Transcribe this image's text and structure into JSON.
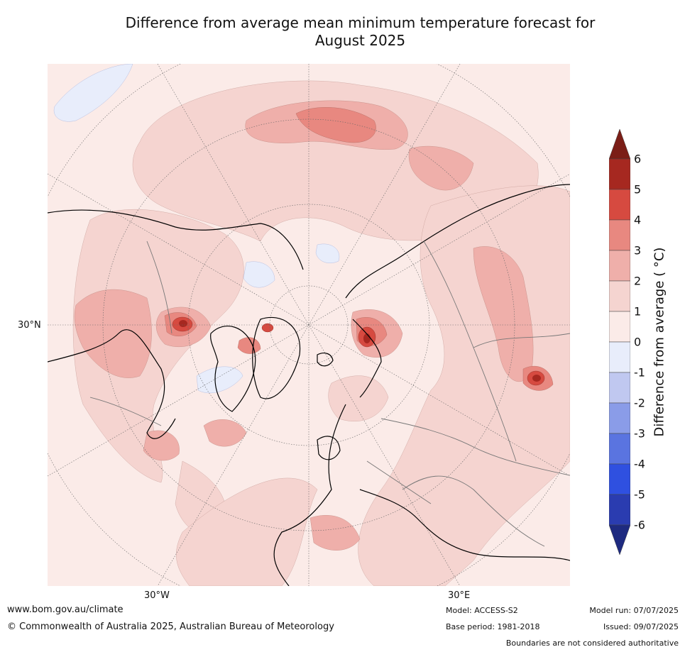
{
  "title_line1": "Difference from average mean minimum temperature forecast for",
  "title_line2": "August 2025",
  "map": {
    "projection": "polar",
    "lat_label": "30°N",
    "lon_labels": {
      "west": "30°W",
      "east": "30°E"
    }
  },
  "colorbar": {
    "label": "Difference from average ( °C)",
    "ticks": [
      "6",
      "5",
      "4",
      "3",
      "2",
      "1",
      "0",
      "-1",
      "-2",
      "-3",
      "-4",
      "-5",
      "-6"
    ],
    "colors": {
      "over": "#7b1e17",
      "5_6": "#a62820",
      "4_5": "#d64a40",
      "3_4": "#e88880",
      "2_3": "#efafaa",
      "1_2": "#f5d4d0",
      "0_1": "#fbebe8",
      "m1_0": "#e8edfb",
      "m2_m1": "#c0c8f0",
      "m3_m2": "#8a9ce8",
      "m4_m3": "#5a74e0",
      "m5_m4": "#2f50e0",
      "m6_m5": "#2a3cb0",
      "under": "#1e2a80"
    }
  },
  "footer": {
    "website": "www.bom.gov.au/climate",
    "copyright": "© Commonwealth of Australia 2025, Australian Bureau of Meteorology",
    "model": "Model: ACCESS-S2",
    "base_period": "Base period: 1981-2018",
    "model_run": "Model run: 07/07/2025",
    "issued": "Issued: 09/07/2025",
    "disclaimer": "Boundaries are not considered authoritative"
  }
}
